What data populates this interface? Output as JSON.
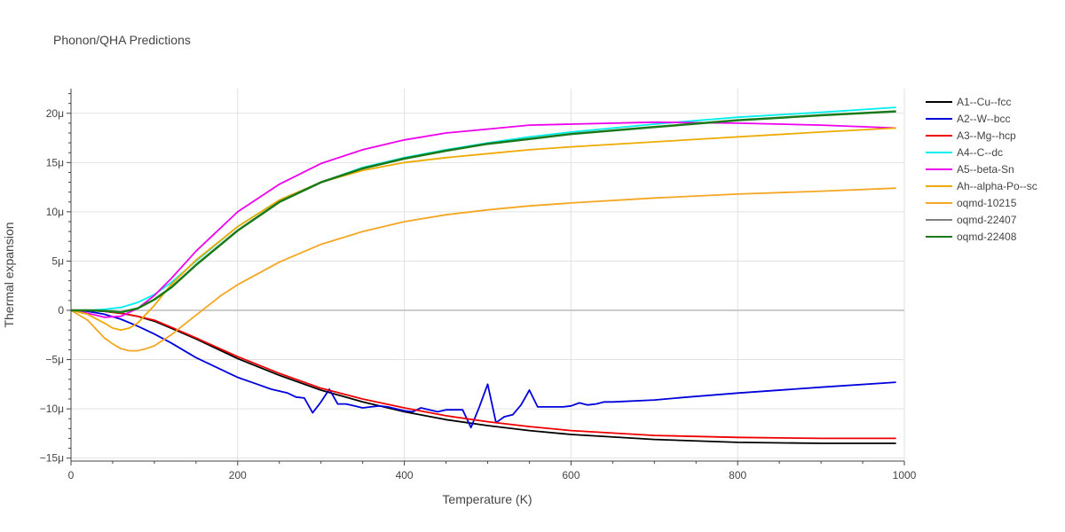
{
  "chart_data": {
    "type": "line",
    "title": "Phonon/QHA Predictions",
    "xlabel": "Temperature (K)",
    "ylabel": "Thermal expansion",
    "xlim": [
      0,
      1000
    ],
    "ylim": [
      -15.3,
      22.5
    ],
    "x_ticks": [
      0,
      200,
      400,
      600,
      800,
      1000
    ],
    "y_ticks": [
      -15,
      -10,
      -5,
      0,
      5,
      10,
      15,
      20
    ],
    "y_tick_labels": [
      "−15μ",
      "−10μ",
      "−5μ",
      "0",
      "5μ",
      "10μ",
      "15μ",
      "20μ"
    ],
    "y_unit": "1e-6 per K",
    "grid": true,
    "legend_position": "right",
    "series": [
      {
        "name": "A1--Cu--fcc",
        "color": "#000000",
        "x": [
          0,
          20,
          40,
          60,
          80,
          100,
          120,
          150,
          200,
          250,
          300,
          350,
          400,
          450,
          500,
          550,
          600,
          700,
          800,
          900,
          990
        ],
        "y": [
          0,
          0,
          -0.1,
          -0.3,
          -0.6,
          -1.1,
          -1.8,
          -2.9,
          -4.9,
          -6.6,
          -8.1,
          -9.3,
          -10.3,
          -11.1,
          -11.7,
          -12.2,
          -12.6,
          -13.1,
          -13.4,
          -13.5,
          -13.5
        ]
      },
      {
        "name": "A2--W--bcc",
        "color": "#0000dd",
        "x": [
          0,
          20,
          40,
          60,
          80,
          100,
          120,
          150,
          180,
          200,
          220,
          240,
          260,
          270,
          280,
          290,
          300,
          310,
          320,
          330,
          340,
          350,
          360,
          370,
          380,
          400,
          410,
          420,
          430,
          440,
          450,
          460,
          470,
          480,
          490,
          500,
          510,
          520,
          530,
          540,
          550,
          560,
          570,
          580,
          590,
          600,
          610,
          620,
          630,
          640,
          650,
          700,
          740,
          800,
          900,
          990
        ],
        "y": [
          0,
          -0.1,
          -0.4,
          -0.9,
          -1.6,
          -2.4,
          -3.3,
          -4.8,
          -6.0,
          -6.8,
          -7.4,
          -8.0,
          -8.4,
          -8.8,
          -8.9,
          -10.4,
          -9.3,
          -8.0,
          -9.5,
          -9.5,
          -9.7,
          -9.9,
          -9.8,
          -9.7,
          -9.8,
          -10.2,
          -10.3,
          -9.9,
          -10.1,
          -10.3,
          -10.1,
          -10.1,
          -10.1,
          -11.9,
          -9.8,
          -7.5,
          -11.4,
          -10.8,
          -10.6,
          -9.6,
          -8.1,
          -9.8,
          -9.8,
          -9.8,
          -9.8,
          -9.7,
          -9.4,
          -9.6,
          -9.5,
          -9.3,
          -9.3,
          -9.1,
          -8.8,
          -8.4,
          -7.8,
          -7.3
        ]
      },
      {
        "name": "A3--Mg--hcp",
        "color": "#ee0000",
        "x": [
          0,
          20,
          40,
          60,
          80,
          100,
          120,
          150,
          200,
          250,
          300,
          350,
          400,
          450,
          500,
          550,
          600,
          700,
          800,
          900,
          990
        ],
        "y": [
          0,
          0,
          -0.1,
          -0.3,
          -0.6,
          -1.0,
          -1.7,
          -2.8,
          -4.7,
          -6.4,
          -7.9,
          -9.0,
          -9.9,
          -10.7,
          -11.3,
          -11.8,
          -12.2,
          -12.7,
          -12.9,
          -13.0,
          -13.0
        ]
      },
      {
        "name": "A4--C--dc",
        "color": "#00eeee",
        "x": [
          0,
          20,
          40,
          60,
          80,
          100,
          120,
          150,
          200,
          250,
          300,
          350,
          400,
          450,
          500,
          550,
          600,
          700,
          800,
          900,
          990
        ],
        "y": [
          0,
          0,
          0.1,
          0.3,
          0.8,
          1.6,
          2.8,
          5.0,
          8.5,
          11.2,
          13.0,
          14.5,
          15.5,
          16.3,
          17.0,
          17.6,
          18.1,
          18.9,
          19.6,
          20.1,
          20.6
        ]
      },
      {
        "name": "A5--beta-Sn",
        "color": "#ee00ee",
        "x": [
          0,
          20,
          40,
          60,
          80,
          100,
          120,
          150,
          200,
          250,
          300,
          350,
          400,
          450,
          500,
          550,
          600,
          700,
          800,
          900,
          990
        ],
        "y": [
          0,
          -0.3,
          -0.7,
          -0.6,
          0.2,
          1.5,
          3.2,
          6.0,
          10.0,
          12.8,
          14.9,
          16.3,
          17.3,
          18.0,
          18.4,
          18.8,
          18.9,
          19.1,
          19.0,
          18.8,
          18.5
        ]
      },
      {
        "name": "Ah--alpha-Po--sc",
        "color": "#eeaa00",
        "x": [
          0,
          20,
          40,
          50,
          60,
          70,
          80,
          100,
          120,
          150,
          200,
          250,
          300,
          350,
          400,
          450,
          500,
          550,
          600,
          700,
          800,
          900,
          990
        ],
        "y": [
          0,
          -0.4,
          -1.3,
          -1.8,
          -2.0,
          -1.8,
          -1.3,
          0.5,
          2.6,
          5.1,
          8.5,
          11.2,
          13.0,
          14.2,
          15.0,
          15.5,
          15.9,
          16.3,
          16.6,
          17.1,
          17.6,
          18.1,
          18.5
        ]
      },
      {
        "name": "oqmd-10215",
        "color": "#f5a623",
        "x": [
          0,
          20,
          40,
          50,
          60,
          70,
          80,
          90,
          100,
          120,
          150,
          180,
          200,
          250,
          300,
          350,
          400,
          450,
          500,
          550,
          600,
          700,
          800,
          900,
          990
        ],
        "y": [
          0,
          -1.0,
          -2.8,
          -3.4,
          -3.9,
          -4.1,
          -4.1,
          -3.9,
          -3.6,
          -2.5,
          -0.5,
          1.5,
          2.6,
          4.9,
          6.7,
          8.0,
          9.0,
          9.7,
          10.2,
          10.6,
          10.9,
          11.4,
          11.8,
          12.1,
          12.4
        ]
      },
      {
        "name": "oqmd-22407",
        "color": "#808080",
        "x": [
          0,
          20,
          40,
          60,
          80,
          100,
          120,
          150,
          200,
          250,
          300,
          350,
          400,
          450,
          500,
          550,
          600,
          700,
          800,
          900,
          990
        ],
        "y": [
          0,
          0,
          -0.05,
          -0.2,
          0.2,
          1.1,
          2.3,
          4.6,
          8.1,
          11.0,
          13.0,
          14.4,
          15.4,
          16.2,
          16.9,
          17.4,
          17.9,
          18.6,
          19.3,
          19.8,
          20.2
        ]
      },
      {
        "name": "oqmd-22408",
        "color": "#1a7a1a",
        "x": [
          0,
          20,
          40,
          60,
          80,
          100,
          120,
          150,
          200,
          250,
          300,
          350,
          400,
          450,
          500,
          550,
          600,
          700,
          800,
          900,
          990
        ],
        "y": [
          0,
          0,
          -0.05,
          -0.2,
          0.2,
          1.1,
          2.3,
          4.6,
          8.1,
          11.0,
          13.0,
          14.4,
          15.4,
          16.2,
          16.9,
          17.4,
          17.9,
          18.6,
          19.3,
          19.8,
          20.2
        ]
      }
    ]
  }
}
